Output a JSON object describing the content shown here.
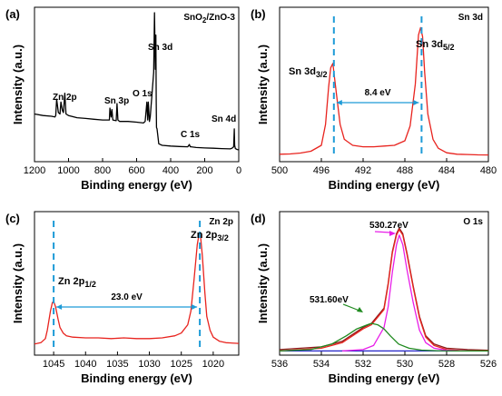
{
  "chart_data": [
    {
      "id": "a",
      "type": "line",
      "panel_label": "(a)",
      "corner_label": {
        "main": "SnO",
        "sub": "2",
        "rest": "/ZnO-3"
      },
      "xlabel": "Binding energy (eV)",
      "ylabel": "Intensity (a.u.)",
      "xlim": [
        1200,
        0
      ],
      "ylim": [
        0,
        100
      ],
      "xticks": [
        "1200",
        "1000",
        "800",
        "600",
        "400",
        "200",
        "0"
      ],
      "xtick_values": [
        1200,
        1000,
        800,
        600,
        400,
        200,
        0
      ],
      "series": [
        {
          "color": "#000000",
          "x": [
            1200,
            1150,
            1100,
            1080,
            1075,
            1070,
            1060,
            1050,
            1045,
            1035,
            1030,
            1022,
            1015,
            1000,
            950,
            900,
            850,
            800,
            760,
            757,
            750,
            745,
            740,
            720,
            715,
            710,
            700,
            650,
            600,
            560,
            550,
            540,
            535,
            531,
            525,
            520,
            500,
            495,
            490,
            487,
            485,
            483,
            480,
            470,
            450,
            400,
            350,
            300,
            290,
            285,
            280,
            270,
            250,
            200,
            150,
            100,
            50,
            40,
            30,
            26,
            24,
            20,
            10,
            0
          ],
          "y": [
            32,
            31,
            30.5,
            30,
            31,
            42,
            33,
            32,
            40,
            34,
            33,
            46,
            32,
            31,
            29.5,
            29,
            28.5,
            28,
            28,
            36,
            30,
            35,
            28,
            27.5,
            39,
            28,
            27,
            27,
            26.5,
            26,
            27,
            40,
            28,
            40,
            27,
            30,
            60,
            100,
            62,
            85,
            40,
            23,
            22,
            12,
            11,
            10.5,
            10.2,
            10,
            11.5,
            10,
            10,
            9.8,
            9.5,
            9.2,
            9,
            8.8,
            8.6,
            9,
            10,
            22,
            11,
            8.8,
            8.2,
            8
          ]
        }
      ],
      "annotations": [
        "Zn 2p",
        "Sn 3p",
        "O 1s",
        "Sn 3d",
        "C 1s",
        "Sn 4d"
      ]
    },
    {
      "id": "b",
      "type": "line",
      "panel_label": "(b)",
      "corner_label": "Sn 3d",
      "xlabel": "Binding energy (eV)",
      "ylabel": "Intensity (a.u.)",
      "xlim": [
        500,
        480
      ],
      "ylim": [
        0,
        100
      ],
      "xticks": [
        "500",
        "496",
        "492",
        "488",
        "484",
        "480"
      ],
      "xtick_values": [
        500,
        496,
        492,
        488,
        484,
        480
      ],
      "series": [
        {
          "color": "#e8231e",
          "x": [
            500,
            499,
            498,
            497,
            496,
            495.6,
            495.3,
            495.1,
            494.9,
            494.8,
            494.5,
            494.2,
            493.8,
            493,
            492,
            491,
            490,
            489,
            488,
            487.5,
            487,
            486.7,
            486.5,
            486.3,
            486.1,
            485.8,
            485.3,
            484.8,
            484,
            483,
            482,
            481,
            480
          ],
          "y": [
            5,
            5.2,
            5.8,
            7,
            11,
            25,
            50,
            63,
            66,
            60,
            42,
            25,
            15,
            11,
            10,
            10,
            10.5,
            11,
            14,
            24,
            52,
            85,
            90,
            84,
            60,
            32,
            15,
            9,
            6,
            5,
            4.8,
            4.6,
            4.5
          ]
        }
      ],
      "peak_lines_x": [
        494.8,
        486.4
      ],
      "peaks": [
        {
          "label": "Sn 3d",
          "sub": "3/2"
        },
        {
          "label": "Sn 3d",
          "sub": "5/2"
        }
      ],
      "separation_label": "8.4 eV"
    },
    {
      "id": "c",
      "type": "line",
      "panel_label": "(c)",
      "corner_label": "Zn 2p",
      "xlabel": "Binding energy (eV)",
      "ylabel": "Intensity (a.u.)",
      "xlim": [
        1048,
        1016
      ],
      "ylim": [
        0,
        100
      ],
      "xticks": [
        "1045",
        "1040",
        "1035",
        "1030",
        "1025",
        "1020"
      ],
      "xtick_values": [
        1045,
        1040,
        1035,
        1030,
        1025,
        1020
      ],
      "series": [
        {
          "color": "#e8231e",
          "x": [
            1048,
            1047,
            1046.3,
            1046,
            1045.5,
            1045.2,
            1045,
            1044.7,
            1044.3,
            1044,
            1043.5,
            1043,
            1042,
            1040,
            1038,
            1036,
            1034,
            1032,
            1030,
            1028,
            1026,
            1025,
            1024,
            1023.5,
            1023,
            1022.5,
            1022.2,
            1022,
            1021.7,
            1021.3,
            1021,
            1020.5,
            1020,
            1019,
            1018,
            1016
          ],
          "y": [
            8,
            9,
            12,
            18,
            32,
            38,
            39,
            35,
            26,
            20,
            16,
            14,
            13,
            12.5,
            12.5,
            12,
            12.5,
            12,
            12,
            12.5,
            14,
            16,
            22,
            32,
            55,
            80,
            88,
            87,
            72,
            45,
            28,
            18,
            13,
            10,
            9,
            8.5
          ]
        }
      ],
      "peak_lines_x": [
        1045,
        1022.1
      ],
      "peaks": [
        {
          "label": "Zn 2p",
          "sub": "1/2"
        },
        {
          "label": "Zn 2p",
          "sub": "3/2"
        }
      ],
      "separation_label": "23.0 eV"
    },
    {
      "id": "d",
      "type": "line",
      "panel_label": "(d)",
      "corner_label": "O 1s",
      "xlabel": "Binding energy (eV)",
      "ylabel": "Intensity (a.u.)",
      "xlim": [
        536,
        526
      ],
      "ylim": [
        0,
        100
      ],
      "xticks": [
        "536",
        "534",
        "532",
        "530",
        "528",
        "526"
      ],
      "xtick_values": [
        536,
        534,
        532,
        530,
        528,
        526
      ],
      "series": [
        {
          "color": "#2323c8",
          "x": [
            536,
            526
          ],
          "y": [
            3,
            3
          ]
        },
        {
          "color": "#8b1a1a",
          "x": [
            536,
            534,
            533,
            532.5,
            532,
            531.6,
            531,
            530.8,
            530.6,
            530.4,
            530.27,
            530.1,
            529.9,
            529.6,
            529.3,
            529,
            528.6,
            528,
            527,
            526
          ],
          "y": [
            4,
            6,
            10,
            15,
            20,
            23,
            34,
            52,
            75,
            88,
            92,
            88,
            74,
            50,
            28,
            14,
            8,
            5,
            4,
            3.5
          ]
        },
        {
          "color": "#e8231e",
          "x": [
            536,
            534,
            533,
            532.5,
            532,
            531.6,
            531,
            530.8,
            530.6,
            530.4,
            530.27,
            530.1,
            529.9,
            529.6,
            529.3,
            529,
            528.6,
            528,
            527,
            526
          ],
          "y": [
            3,
            5,
            9,
            14,
            19,
            22,
            33,
            51,
            74,
            87,
            91,
            87,
            73,
            49,
            27,
            13,
            7,
            4,
            3,
            3
          ]
        },
        {
          "color": "#e81ee8",
          "x": [
            533,
            532,
            531.5,
            531,
            530.8,
            530.6,
            530.4,
            530.27,
            530.1,
            529.9,
            529.6,
            529.3,
            529,
            528.6,
            528,
            527
          ],
          "y": [
            3,
            4,
            7,
            20,
            35,
            60,
            80,
            87,
            80,
            62,
            38,
            18,
            9,
            5,
            3.5,
            3
          ]
        },
        {
          "color": "#1f8a1f",
          "x": [
            536,
            534.5,
            533.5,
            532.8,
            532.3,
            531.8,
            531.6,
            531.3,
            531,
            530.7,
            530.3,
            529.8,
            529.2,
            528.5,
            527,
            526
          ],
          "y": [
            3,
            4,
            8,
            14,
            19,
            22,
            23,
            22,
            19,
            14,
            8,
            5,
            3.6,
            3.2,
            3,
            3
          ]
        }
      ],
      "annotations": [
        "531.60eV",
        "530.27eV"
      ]
    }
  ]
}
